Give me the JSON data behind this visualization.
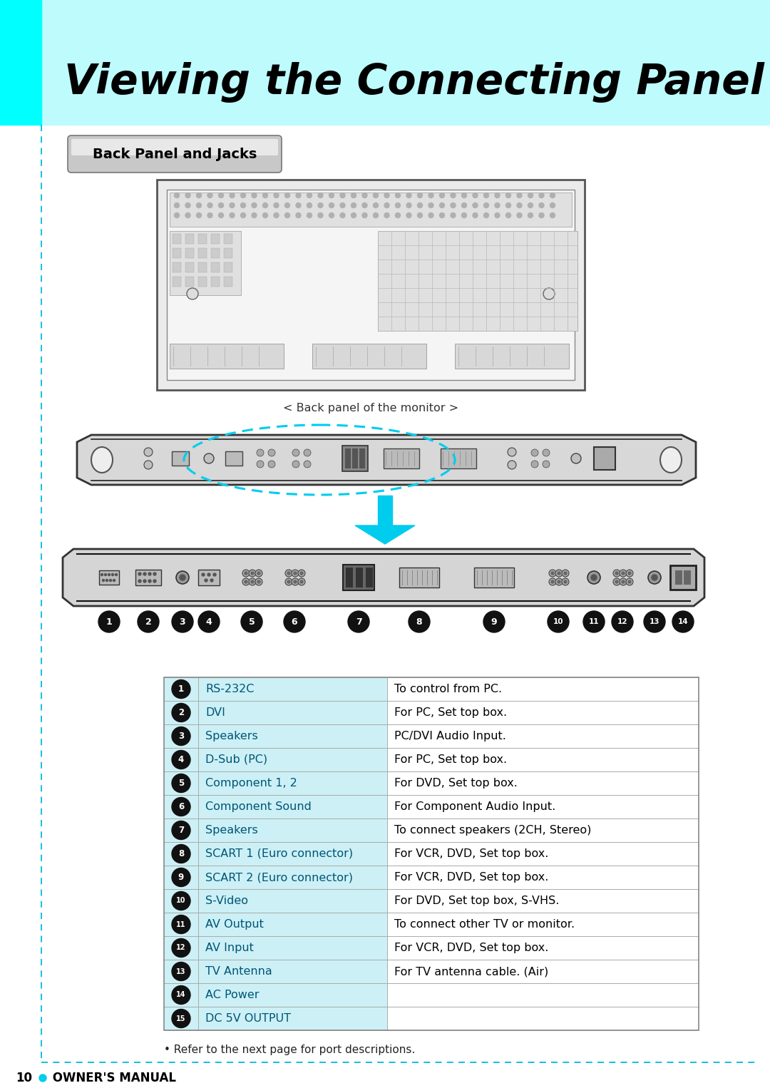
{
  "title": "Viewing the Connecting Panel",
  "section_label": "Back Panel and Jacks",
  "back_panel_caption": "< Back panel of the monitor >",
  "arrow_color": "#00CCEE",
  "cyan_bar_color": "#00FFFF",
  "header_bg": "#AAEEFF",
  "table_row_bg": "#CCF0F5",
  "table_border": "#AAAAAA",
  "left_bar_color": "#00FFFF",
  "dashed_border_color": "#00BBDD",
  "refer_text": "• Refer to the next page for port descriptions.",
  "table_rows": [
    [
      "1",
      "RS-232C",
      "To control from PC."
    ],
    [
      "2",
      "DVI",
      "For PC, Set top box."
    ],
    [
      "3",
      "Speakers",
      "PC/DVI Audio Input."
    ],
    [
      "4",
      "D-Sub (PC)",
      "For PC, Set top box."
    ],
    [
      "5",
      "Component 1, 2",
      "For DVD, Set top box."
    ],
    [
      "6",
      "Component Sound",
      "For Component Audio Input."
    ],
    [
      "7",
      "Speakers",
      "To connect speakers (2CH, Stereo)"
    ],
    [
      "8",
      "SCART 1 (Euro connector)",
      "For VCR, DVD, Set top box."
    ],
    [
      "9",
      "SCART 2 (Euro connector)",
      "For VCR, DVD, Set top box."
    ],
    [
      "10",
      "S-Video",
      "For DVD, Set top box, S-VHS."
    ],
    [
      "11",
      "AV Output",
      "To connect other TV or monitor."
    ],
    [
      "12",
      "AV Input",
      "For VCR, DVD, Set top box."
    ],
    [
      "13",
      "TV Antenna",
      "For TV antenna cable. (Air)"
    ],
    [
      "14",
      "AC Power",
      ""
    ],
    [
      "15",
      "DC 5V OUTPUT",
      ""
    ]
  ]
}
